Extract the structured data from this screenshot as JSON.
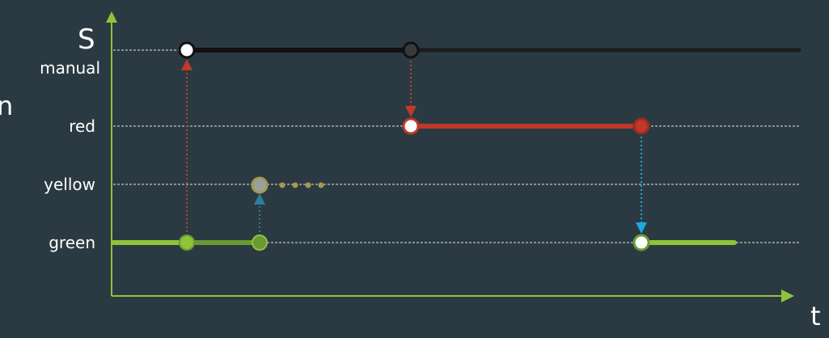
{
  "axes": {
    "y_title": "S",
    "x_title": "t",
    "axis_color": "#8fc33a"
  },
  "edge_fragment": "n",
  "states": [
    {
      "key": "manual",
      "label": "manual"
    },
    {
      "key": "red",
      "label": "red"
    },
    {
      "key": "yellow",
      "label": "yellow"
    },
    {
      "key": "green",
      "label": "green"
    }
  ],
  "colors": {
    "background": "#2b3a42",
    "manual": "#111111",
    "red": "#c0392b",
    "yellow": "#a59a4e",
    "green": "#8fc33a",
    "green_dim": "#6a9a33",
    "arrow_red": "#c0392b",
    "arrow_teal": "#2a7fa0",
    "arrow_cyan": "#1ea7e0",
    "gridline": "#e6e6e6"
  }
}
